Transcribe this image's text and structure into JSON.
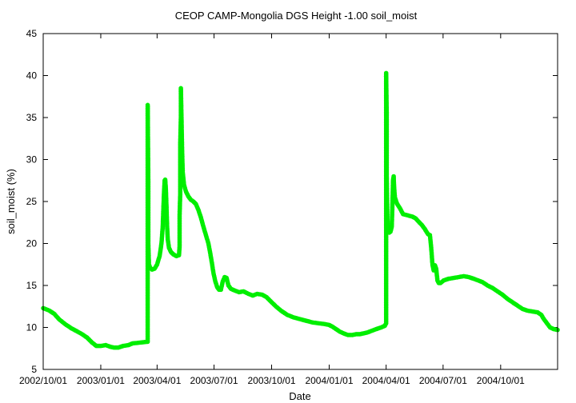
{
  "chart_data": {
    "type": "line",
    "title": "CEOP CAMP-Mongolia DGS Height -1.00 soil_moist",
    "xlabel": "Date",
    "ylabel": "soil_moist (%)",
    "ylim": [
      5,
      45
    ],
    "yticks": [
      5,
      10,
      15,
      20,
      25,
      30,
      35,
      40,
      45
    ],
    "xticks": [
      {
        "label": "2002/10/01",
        "day": 0
      },
      {
        "label": "2003/01/01",
        "day": 92
      },
      {
        "label": "2003/04/01",
        "day": 182
      },
      {
        "label": "2003/07/01",
        "day": 273
      },
      {
        "label": "2003/10/01",
        "day": 365
      },
      {
        "label": "2004/01/01",
        "day": 457
      },
      {
        "label": "2004/04/01",
        "day": 548
      },
      {
        "label": "2004/07/01",
        "day": 639
      },
      {
        "label": "2004/10/01",
        "day": 731
      }
    ],
    "xlim": [
      0,
      822
    ],
    "series_color": "#00ee00",
    "series": [
      {
        "name": "soil_moist",
        "points": [
          [
            0,
            12.3
          ],
          [
            10,
            12.0
          ],
          [
            18,
            11.6
          ],
          [
            25,
            11.0
          ],
          [
            35,
            10.4
          ],
          [
            45,
            9.9
          ],
          [
            55,
            9.5
          ],
          [
            62,
            9.2
          ],
          [
            70,
            8.8
          ],
          [
            78,
            8.2
          ],
          [
            85,
            7.8
          ],
          [
            92,
            7.8
          ],
          [
            100,
            7.9
          ],
          [
            107,
            7.7
          ],
          [
            113,
            7.6
          ],
          [
            120,
            7.6
          ],
          [
            128,
            7.8
          ],
          [
            136,
            7.9
          ],
          [
            143,
            8.1
          ],
          [
            167,
            8.3
          ],
          [
            167,
            13.0
          ],
          [
            167,
            17.0
          ],
          [
            167,
            22.0
          ],
          [
            167,
            28.0
          ],
          [
            167,
            33.0
          ],
          [
            167,
            36.5
          ],
          [
            168,
            27.0
          ],
          [
            168,
            20.0
          ],
          [
            169,
            17.5
          ],
          [
            171,
            17.1
          ],
          [
            174,
            16.9
          ],
          [
            178,
            17.0
          ],
          [
            182,
            17.5
          ],
          [
            186,
            18.5
          ],
          [
            189,
            20.0
          ],
          [
            191,
            22.0
          ],
          [
            192,
            24.0
          ],
          [
            193,
            26.0
          ],
          [
            194,
            27.5
          ],
          [
            195,
            27.6
          ],
          [
            196,
            26.5
          ],
          [
            197,
            24.5
          ],
          [
            198,
            22.0
          ],
          [
            199,
            20.5
          ],
          [
            201,
            19.5
          ],
          [
            204,
            19.0
          ],
          [
            208,
            18.7
          ],
          [
            213,
            18.5
          ],
          [
            217,
            18.6
          ],
          [
            218,
            19.7
          ],
          [
            218,
            23.4
          ],
          [
            219,
            26.0
          ],
          [
            219,
            29.0
          ],
          [
            219,
            32.0
          ],
          [
            220,
            35.0
          ],
          [
            220,
            38.5
          ],
          [
            221,
            35.0
          ],
          [
            222,
            31.0
          ],
          [
            223,
            28.5
          ],
          [
            225,
            27.0
          ],
          [
            228,
            26.2
          ],
          [
            232,
            25.6
          ],
          [
            236,
            25.2
          ],
          [
            240,
            25.0
          ],
          [
            244,
            24.7
          ],
          [
            248,
            24.0
          ],
          [
            252,
            23.1
          ],
          [
            256,
            22.0
          ],
          [
            260,
            21.0
          ],
          [
            264,
            20.0
          ],
          [
            267,
            18.8
          ],
          [
            270,
            17.5
          ],
          [
            272,
            16.5
          ],
          [
            275,
            15.5
          ],
          [
            278,
            14.8
          ],
          [
            281,
            14.5
          ],
          [
            284,
            14.5
          ],
          [
            287,
            15.5
          ],
          [
            290,
            16.0
          ],
          [
            293,
            15.9
          ],
          [
            296,
            15.0
          ],
          [
            300,
            14.6
          ],
          [
            306,
            14.4
          ],
          [
            313,
            14.2
          ],
          [
            320,
            14.3
          ],
          [
            328,
            14.0
          ],
          [
            335,
            13.8
          ],
          [
            342,
            14.0
          ],
          [
            350,
            13.9
          ],
          [
            357,
            13.6
          ],
          [
            365,
            13.0
          ],
          [
            372,
            12.5
          ],
          [
            380,
            12.0
          ],
          [
            390,
            11.5
          ],
          [
            400,
            11.2
          ],
          [
            410,
            11.0
          ],
          [
            420,
            10.8
          ],
          [
            430,
            10.6
          ],
          [
            440,
            10.5
          ],
          [
            450,
            10.4
          ],
          [
            457,
            10.3
          ],
          [
            462,
            10.1
          ],
          [
            468,
            9.8
          ],
          [
            474,
            9.5
          ],
          [
            480,
            9.3
          ],
          [
            487,
            9.1
          ],
          [
            494,
            9.1
          ],
          [
            500,
            9.2
          ],
          [
            506,
            9.2
          ],
          [
            512,
            9.3
          ],
          [
            518,
            9.4
          ],
          [
            525,
            9.6
          ],
          [
            532,
            9.8
          ],
          [
            540,
            10.0
          ],
          [
            546,
            10.2
          ],
          [
            548,
            10.5
          ],
          [
            548,
            21.3
          ],
          [
            548,
            25.0
          ],
          [
            548,
            30.0
          ],
          [
            548,
            35.0
          ],
          [
            548,
            40.3
          ],
          [
            549,
            35.0
          ],
          [
            549,
            28.0
          ],
          [
            550,
            23.0
          ],
          [
            551,
            21.5
          ],
          [
            553,
            21.3
          ],
          [
            555,
            21.4
          ],
          [
            557,
            22.0
          ],
          [
            558,
            24.5
          ],
          [
            559,
            27.5
          ],
          [
            560,
            28.0
          ],
          [
            561,
            26.5
          ],
          [
            562,
            25.5
          ],
          [
            565,
            24.8
          ],
          [
            570,
            24.2
          ],
          [
            575,
            23.5
          ],
          [
            580,
            23.4
          ],
          [
            585,
            23.3
          ],
          [
            590,
            23.2
          ],
          [
            595,
            23.0
          ],
          [
            600,
            22.6
          ],
          [
            605,
            22.2
          ],
          [
            610,
            21.7
          ],
          [
            615,
            21.1
          ],
          [
            618,
            21.0
          ],
          [
            620,
            19.5
          ],
          [
            622,
            17.5
          ],
          [
            624,
            16.8
          ],
          [
            626,
            17.4
          ],
          [
            628,
            17.0
          ],
          [
            630,
            15.6
          ],
          [
            632,
            15.3
          ],
          [
            635,
            15.3
          ],
          [
            640,
            15.6
          ],
          [
            648,
            15.8
          ],
          [
            656,
            15.9
          ],
          [
            664,
            16.0
          ],
          [
            672,
            16.1
          ],
          [
            680,
            16.0
          ],
          [
            688,
            15.8
          ],
          [
            695,
            15.6
          ],
          [
            702,
            15.4
          ],
          [
            710,
            15.0
          ],
          [
            718,
            14.7
          ],
          [
            726,
            14.3
          ],
          [
            734,
            13.9
          ],
          [
            742,
            13.4
          ],
          [
            750,
            13.0
          ],
          [
            758,
            12.6
          ],
          [
            766,
            12.2
          ],
          [
            774,
            12.0
          ],
          [
            782,
            11.9
          ],
          [
            790,
            11.8
          ],
          [
            796,
            11.5
          ],
          [
            800,
            11.0
          ],
          [
            805,
            10.5
          ],
          [
            810,
            10.0
          ],
          [
            816,
            9.8
          ],
          [
            822,
            9.7
          ]
        ]
      }
    ]
  }
}
